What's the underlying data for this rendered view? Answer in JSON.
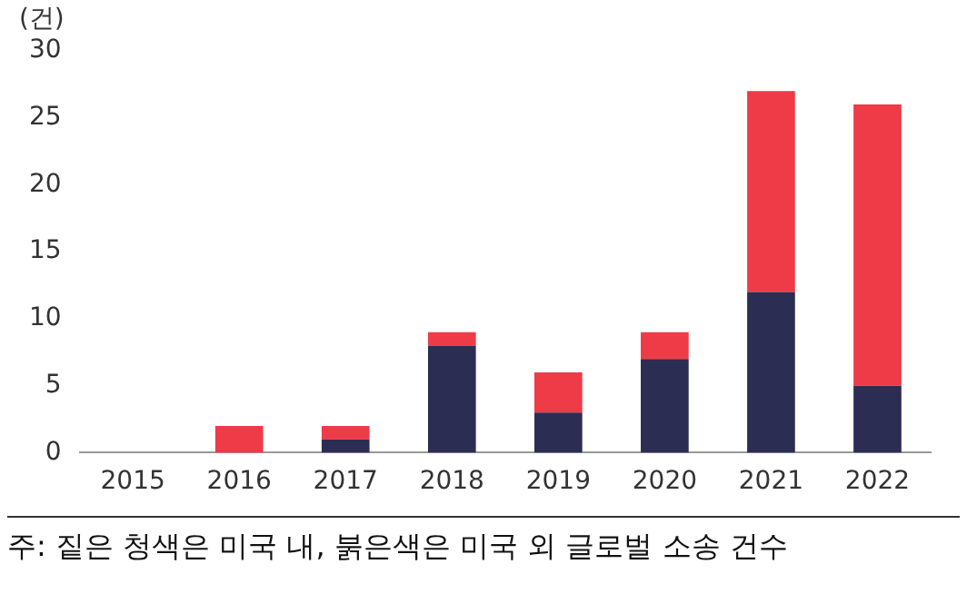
{
  "chart_data": {
    "type": "bar",
    "stacked": true,
    "ylabel": "(건)",
    "categories": [
      "2015",
      "2016",
      "2017",
      "2018",
      "2019",
      "2020",
      "2021",
      "2022"
    ],
    "series": [
      {
        "color": "#2b2d52",
        "values": [
          0,
          0,
          1,
          8,
          3,
          7,
          12,
          5
        ]
      },
      {
        "color": "#ef3a47",
        "values": [
          0,
          2,
          1,
          1,
          3,
          2,
          15,
          21
        ]
      }
    ],
    "ylim": [
      0,
      30
    ],
    "yticks": [
      0,
      5,
      10,
      15,
      20,
      25,
      30
    ],
    "grid": false,
    "legend": false,
    "annotations": [
      "주: 짙은 청색은 미국 내, 붉은색은 미국 외 글로벌 소송 건수"
    ]
  }
}
